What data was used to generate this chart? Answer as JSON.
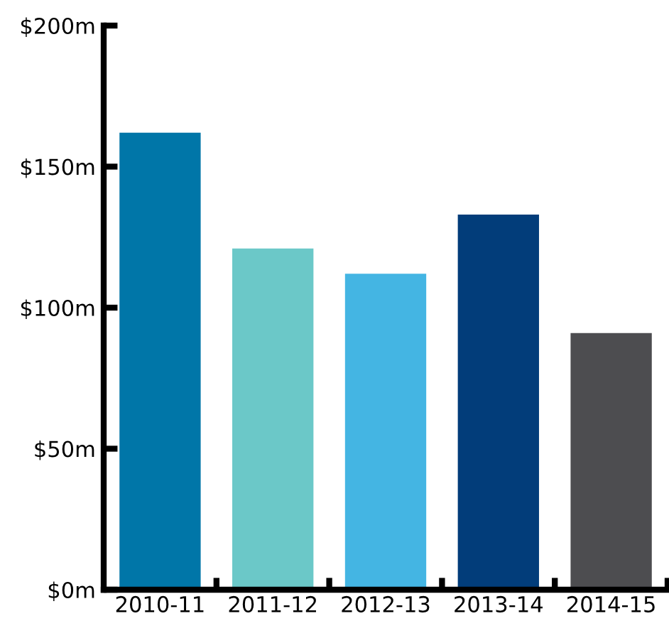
{
  "chart_data": {
    "type": "bar",
    "categories": [
      "2010-11",
      "2011-12",
      "2012-13",
      "2013-14",
      "2014-15"
    ],
    "values": [
      162,
      121,
      112,
      133,
      91
    ],
    "colors": [
      "#0076a8",
      "#6bc8c8",
      "#44b5e3",
      "#023d7a",
      "#4d4d50"
    ],
    "ylim": [
      0,
      200
    ],
    "yticks": [
      {
        "value": 0,
        "label": "$0m"
      },
      {
        "value": 50,
        "label": "$50m"
      },
      {
        "value": 100,
        "label": "$100m"
      },
      {
        "value": 150,
        "label": "$150m"
      },
      {
        "value": 200,
        "label": "$200m"
      }
    ],
    "grid": false
  }
}
